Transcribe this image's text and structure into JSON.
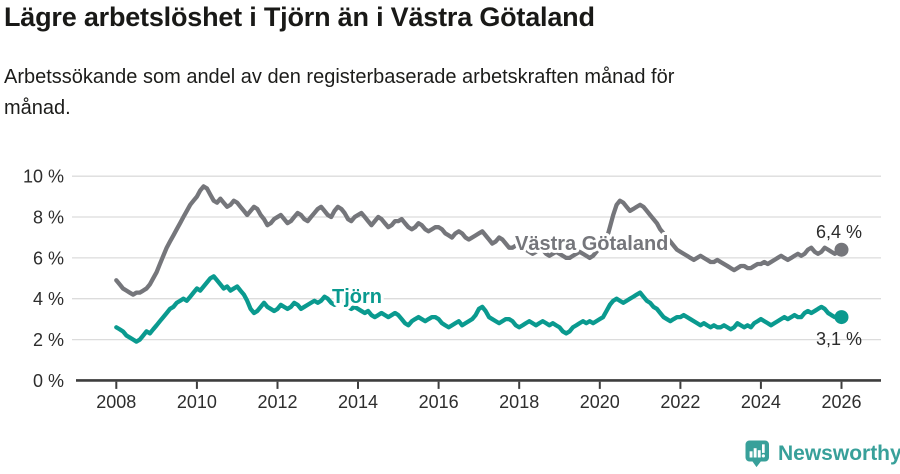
{
  "header": {
    "title": "Lägre arbetslöshet i Tjörn än i Västra Götaland",
    "subtitle_lines": [
      "Arbetssökande som andel av den registerbaserade arbetskraften månad för",
      "månad."
    ]
  },
  "chart_data": {
    "type": "line",
    "title": "Lägre arbetslöshet i Tjörn än i Västra Götaland",
    "subtitle": "Arbetssökande som andel av den registerbaserade arbetskraften månad för månad.",
    "x_start_year": 2008,
    "x_step_months": 1,
    "xticks": [
      2008,
      2010,
      2012,
      2014,
      2016,
      2018,
      2020,
      2022,
      2024,
      2026
    ],
    "ylim": [
      0,
      10
    ],
    "ytick_values": [
      0,
      2,
      4,
      6,
      8,
      10
    ],
    "ytick_labels": [
      "0 %",
      "2 %",
      "4 %",
      "6 %",
      "8 %",
      "10 %"
    ],
    "grid": true,
    "legend": "inline-labels",
    "axis_color": "#3d3d3d",
    "gridline_color": "#dcdcdc",
    "series": [
      {
        "name": "Västra Götaland",
        "color": "#75767b",
        "end_label": "6,4 %",
        "values": [
          4.9,
          4.7,
          4.5,
          4.4,
          4.3,
          4.2,
          4.3,
          4.3,
          4.4,
          4.5,
          4.7,
          5.0,
          5.3,
          5.7,
          6.1,
          6.5,
          6.8,
          7.1,
          7.4,
          7.7,
          8.0,
          8.3,
          8.6,
          8.8,
          9.0,
          9.3,
          9.5,
          9.4,
          9.1,
          8.8,
          8.7,
          8.9,
          8.7,
          8.5,
          8.6,
          8.8,
          8.7,
          8.5,
          8.3,
          8.1,
          8.3,
          8.5,
          8.4,
          8.1,
          7.9,
          7.6,
          7.7,
          7.9,
          8.0,
          8.1,
          7.9,
          7.7,
          7.8,
          8.0,
          8.2,
          8.1,
          7.9,
          7.8,
          8.0,
          8.2,
          8.4,
          8.5,
          8.3,
          8.1,
          8.0,
          8.3,
          8.5,
          8.4,
          8.2,
          7.9,
          7.8,
          8.0,
          8.1,
          8.2,
          8.0,
          7.8,
          7.6,
          7.8,
          8.0,
          7.9,
          7.7,
          7.5,
          7.6,
          7.8,
          7.8,
          7.9,
          7.7,
          7.5,
          7.4,
          7.5,
          7.7,
          7.6,
          7.4,
          7.3,
          7.4,
          7.5,
          7.5,
          7.4,
          7.2,
          7.1,
          7.0,
          7.2,
          7.3,
          7.2,
          7.0,
          6.9,
          7.0,
          7.1,
          7.2,
          7.3,
          7.1,
          6.9,
          6.7,
          6.8,
          7.0,
          6.9,
          6.7,
          6.5,
          6.5,
          6.6,
          6.6,
          6.5,
          6.4,
          6.3,
          6.2,
          6.3,
          6.5,
          6.4,
          6.2,
          6.1,
          6.2,
          6.3,
          6.2,
          6.1,
          6.0,
          6.0,
          6.1,
          6.2,
          6.3,
          6.2,
          6.1,
          6.0,
          6.1,
          6.3,
          6.5,
          6.6,
          6.9,
          7.5,
          8.1,
          8.6,
          8.8,
          8.7,
          8.5,
          8.3,
          8.4,
          8.5,
          8.6,
          8.5,
          8.3,
          8.1,
          7.9,
          7.7,
          7.4,
          7.2,
          7.0,
          6.8,
          6.6,
          6.4,
          6.3,
          6.2,
          6.1,
          6.0,
          5.9,
          6.0,
          6.1,
          6.0,
          5.9,
          5.8,
          5.8,
          5.9,
          5.8,
          5.7,
          5.6,
          5.5,
          5.4,
          5.5,
          5.6,
          5.6,
          5.5,
          5.5,
          5.6,
          5.7,
          5.7,
          5.8,
          5.7,
          5.8,
          5.9,
          6.0,
          6.1,
          6.0,
          5.9,
          6.0,
          6.1,
          6.2,
          6.1,
          6.2,
          6.4,
          6.5,
          6.3,
          6.2,
          6.3,
          6.5,
          6.4,
          6.3,
          6.2,
          6.3,
          6.4
        ]
      },
      {
        "name": "Tjörn",
        "color": "#0a9a8f",
        "end_label": "3,1 %",
        "values": [
          2.6,
          2.5,
          2.4,
          2.2,
          2.1,
          2.0,
          1.9,
          2.0,
          2.2,
          2.4,
          2.3,
          2.5,
          2.7,
          2.9,
          3.1,
          3.3,
          3.5,
          3.6,
          3.8,
          3.9,
          4.0,
          3.9,
          4.1,
          4.3,
          4.5,
          4.4,
          4.6,
          4.8,
          5.0,
          5.1,
          4.9,
          4.7,
          4.5,
          4.6,
          4.4,
          4.5,
          4.6,
          4.4,
          4.2,
          3.9,
          3.5,
          3.3,
          3.4,
          3.6,
          3.8,
          3.6,
          3.5,
          3.4,
          3.5,
          3.7,
          3.6,
          3.5,
          3.6,
          3.8,
          3.7,
          3.5,
          3.6,
          3.7,
          3.8,
          3.9,
          3.8,
          3.9,
          4.1,
          4.0,
          3.8,
          3.7,
          3.8,
          3.9,
          3.7,
          3.6,
          3.5,
          3.6,
          3.5,
          3.4,
          3.3,
          3.4,
          3.2,
          3.1,
          3.2,
          3.3,
          3.2,
          3.1,
          3.2,
          3.3,
          3.2,
          3.0,
          2.8,
          2.7,
          2.9,
          3.0,
          3.1,
          3.0,
          2.9,
          3.0,
          3.1,
          3.1,
          3.0,
          2.8,
          2.7,
          2.6,
          2.7,
          2.8,
          2.9,
          2.7,
          2.8,
          2.9,
          3.0,
          3.2,
          3.5,
          3.6,
          3.4,
          3.1,
          3.0,
          2.9,
          2.8,
          2.9,
          3.0,
          3.0,
          2.9,
          2.7,
          2.6,
          2.7,
          2.8,
          2.9,
          2.8,
          2.7,
          2.8,
          2.9,
          2.8,
          2.7,
          2.8,
          2.7,
          2.6,
          2.4,
          2.3,
          2.4,
          2.6,
          2.7,
          2.8,
          2.9,
          2.8,
          2.9,
          2.8,
          2.9,
          3.0,
          3.1,
          3.4,
          3.7,
          3.9,
          4.0,
          3.9,
          3.8,
          3.9,
          4.0,
          4.1,
          4.2,
          4.3,
          4.1,
          3.9,
          3.8,
          3.6,
          3.5,
          3.3,
          3.1,
          3.0,
          2.9,
          3.0,
          3.1,
          3.1,
          3.2,
          3.1,
          3.0,
          2.9,
          2.8,
          2.7,
          2.8,
          2.7,
          2.6,
          2.7,
          2.6,
          2.6,
          2.7,
          2.6,
          2.5,
          2.6,
          2.8,
          2.7,
          2.6,
          2.7,
          2.6,
          2.8,
          2.9,
          3.0,
          2.9,
          2.8,
          2.7,
          2.8,
          2.9,
          3.0,
          3.1,
          3.0,
          3.1,
          3.2,
          3.1,
          3.1,
          3.3,
          3.4,
          3.3,
          3.4,
          3.5,
          3.6,
          3.5,
          3.3,
          3.2,
          3.1,
          3.2,
          3.1
        ]
      }
    ]
  },
  "footer": {
    "brand": "Newsworthy",
    "brand_color": "#38a09a",
    "logo_icon": "newsworthy-speech-bubble-bar-chart-icon"
  }
}
